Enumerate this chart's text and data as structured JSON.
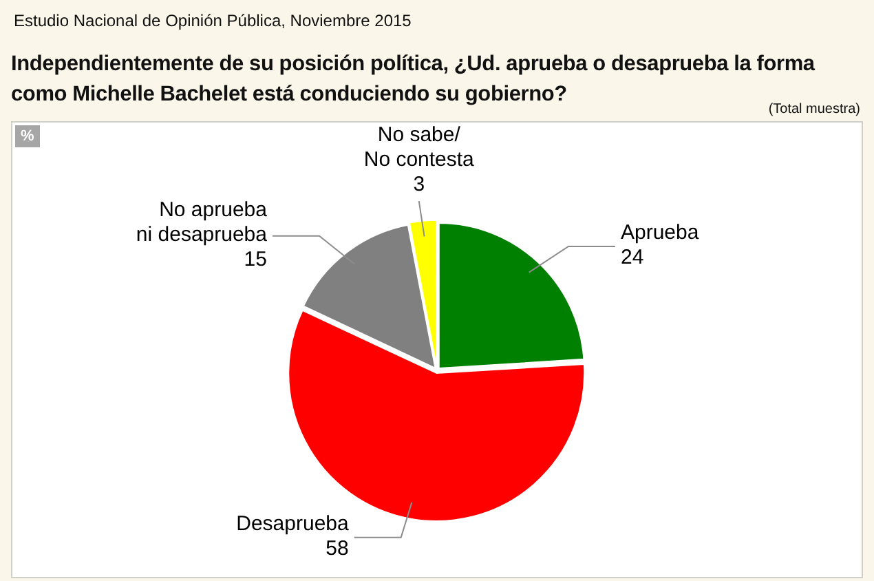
{
  "chart_data": {
    "type": "pie",
    "title": "Independientemente de su posición política, ¿Ud. aprueba o desaprueba la forma como Michelle Bachelet está conduciendo su gobierno?",
    "subtitle": "Estudio Nacional de Opinión Pública, Noviembre 2015",
    "annotations": [
      "(Total muestra)",
      "%"
    ],
    "categories": [
      "Aprueba",
      "Desaprueba",
      "No aprueba\nni desaprueba",
      "No sabe/\nNo contesta"
    ],
    "values": [
      24,
      58,
      15,
      3
    ],
    "colors": [
      "#008000",
      "#ff0000",
      "#808080",
      "#ffff00"
    ],
    "data_labels": true
  }
}
